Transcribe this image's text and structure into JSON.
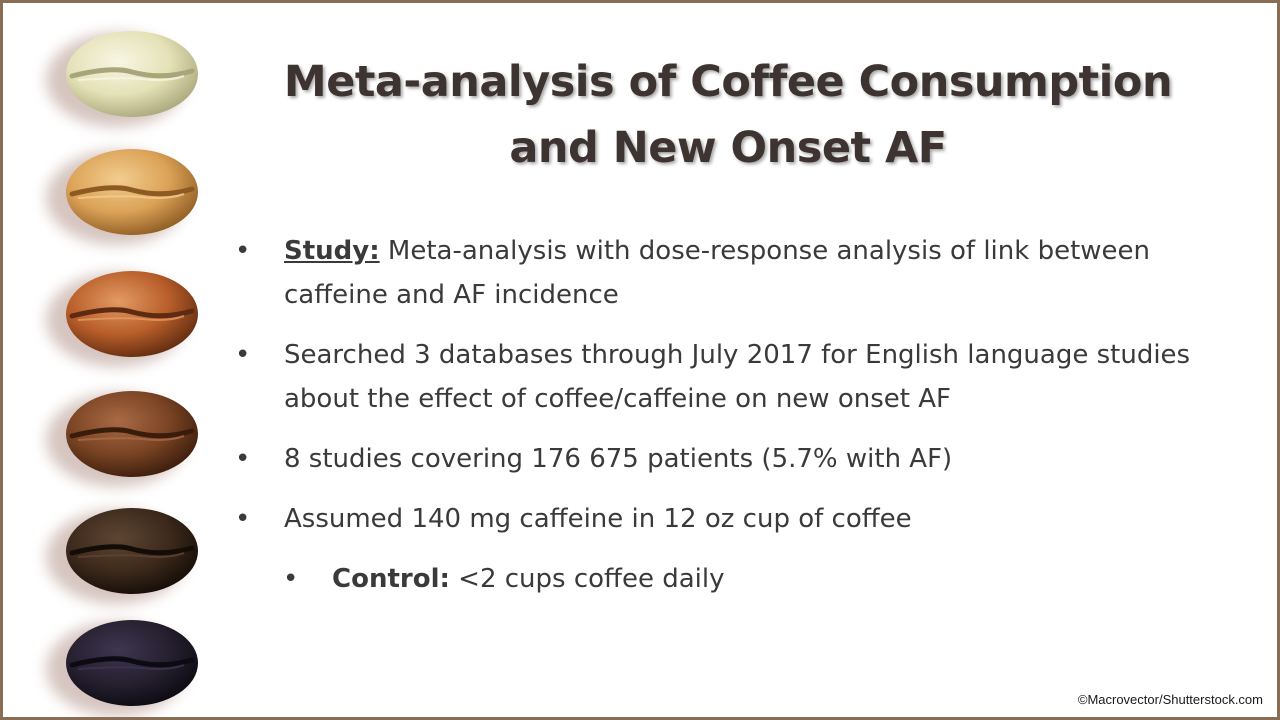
{
  "title": {
    "line1": "Meta-analysis of Coffee Consumption",
    "line2": "and New Onset AF"
  },
  "bullets": [
    {
      "label": "Study:",
      "text": " Meta-analysis with dose-response analysis of link between caffeine and AF incidence"
    },
    {
      "text": "Searched 3 databases through July 2017 for English language studies about the effect of coffee/caffeine on new onset AF"
    },
    {
      "text": "8 studies covering 176 675 patients (5.7% with AF)"
    },
    {
      "text": "Assumed 140 mg caffeine in 12 oz cup of coffee"
    }
  ],
  "sub_bullet": {
    "label": "Control:",
    "text": " <2 cups coffee daily"
  },
  "bullet_glyph": "•",
  "credit": "©Macrovector/Shutterstock.com",
  "colors": {
    "frame": "#8a6d55",
    "title": "#3d3331",
    "body_text": "#3a3a3a"
  },
  "beans": [
    {
      "name": "green-coffee-bean-icon",
      "body": "#e5e2b8",
      "light": "#f7f6e2",
      "dark": "#a8a57a"
    },
    {
      "name": "light-roast-bean-icon",
      "body": "#dba257",
      "light": "#f2cd8e",
      "dark": "#8c5a22"
    },
    {
      "name": "medium-roast-bean-icon",
      "body": "#b85e2a",
      "light": "#e39a63",
      "dark": "#5e2a10"
    },
    {
      "name": "medium-dark-roast-bean-icon",
      "body": "#7a4424",
      "light": "#a86a44",
      "dark": "#3a1c0c"
    },
    {
      "name": "dark-roast-bean-icon",
      "body": "#3d2a1c",
      "light": "#5e4532",
      "dark": "#140c06"
    },
    {
      "name": "black-roast-bean-icon",
      "body": "#262030",
      "light": "#3e3650",
      "dark": "#0c0a12"
    }
  ]
}
